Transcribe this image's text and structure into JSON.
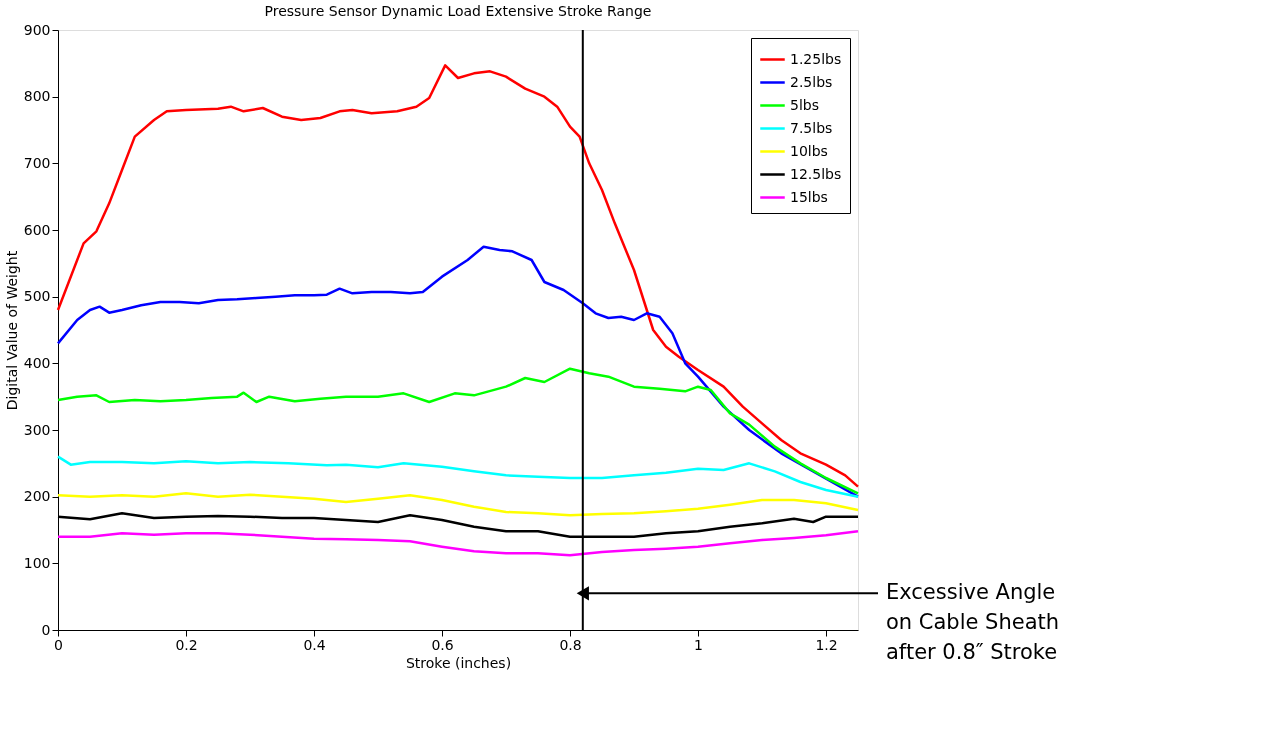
{
  "chart_data": {
    "type": "line",
    "title": "Pressure Sensor Dynamic Load Extensive Stroke Range",
    "xlabel": "Stroke (inches)",
    "ylabel": "Digital Value of Weight",
    "xlim": [
      0,
      1.25
    ],
    "xticks": [
      0,
      0.2,
      0.4,
      0.6,
      0.8,
      1,
      1.2
    ],
    "ylim": [
      0,
      900
    ],
    "yticks": [
      0,
      100,
      200,
      300,
      400,
      500,
      600,
      700,
      800,
      900
    ],
    "grid": false,
    "legend": "top right",
    "marker": "none",
    "line_style": "solid",
    "ref_lines": [
      {
        "axis": "x",
        "value": 0.82,
        "color": "#000000"
      }
    ],
    "annotations": [
      {
        "text": "Excessive Angle on Cable Sheath after 0.8″ Stroke",
        "x": 0.82,
        "y": 55
      }
    ],
    "series": [
      {
        "name": "1.25lbs",
        "color": "#ff0000",
        "x": [
          0,
          0.04,
          0.06,
          0.08,
          0.1,
          0.12,
          0.15,
          0.17,
          0.2,
          0.25,
          0.27,
          0.29,
          0.32,
          0.35,
          0.38,
          0.41,
          0.44,
          0.46,
          0.49,
          0.53,
          0.56,
          0.58,
          0.605,
          0.625,
          0.65,
          0.675,
          0.7,
          0.73,
          0.76,
          0.78,
          0.8,
          0.815,
          0.83,
          0.85,
          0.87,
          0.9,
          0.93,
          0.95,
          0.97,
          1.0,
          1.04,
          1.07,
          1.1,
          1.13,
          1.16,
          1.2,
          1.23,
          1.25
        ],
        "values": [
          480,
          580,
          598,
          640,
          690,
          740,
          765,
          778,
          780,
          782,
          785,
          778,
          783,
          770,
          765,
          768,
          778,
          780,
          775,
          778,
          785,
          798,
          847,
          828,
          835,
          838,
          830,
          812,
          800,
          785,
          755,
          740,
          700,
          660,
          610,
          540,
          450,
          425,
          410,
          390,
          365,
          335,
          310,
          285,
          265,
          248,
          232,
          215
        ]
      },
      {
        "name": "2.5lbs",
        "color": "#0000ff",
        "x": [
          0,
          0.03,
          0.05,
          0.065,
          0.08,
          0.1,
          0.13,
          0.16,
          0.19,
          0.22,
          0.25,
          0.28,
          0.31,
          0.34,
          0.37,
          0.4,
          0.42,
          0.44,
          0.46,
          0.49,
          0.52,
          0.55,
          0.57,
          0.6,
          0.64,
          0.665,
          0.69,
          0.71,
          0.74,
          0.76,
          0.79,
          0.82,
          0.84,
          0.86,
          0.88,
          0.9,
          0.92,
          0.94,
          0.96,
          0.98,
          1.0,
          1.04,
          1.08,
          1.13,
          1.18,
          1.25
        ],
        "values": [
          430,
          465,
          480,
          485,
          476,
          480,
          487,
          492,
          492,
          490,
          495,
          496,
          498,
          500,
          502,
          502,
          503,
          512,
          505,
          507,
          507,
          505,
          507,
          530,
          555,
          575,
          570,
          568,
          555,
          522,
          510,
          490,
          475,
          468,
          470,
          465,
          475,
          470,
          445,
          400,
          380,
          335,
          300,
          265,
          238,
          200
        ]
      },
      {
        "name": "5lbs",
        "color": "#00ff00",
        "x": [
          0,
          0.03,
          0.06,
          0.08,
          0.12,
          0.16,
          0.2,
          0.24,
          0.28,
          0.29,
          0.31,
          0.33,
          0.37,
          0.41,
          0.45,
          0.5,
          0.54,
          0.58,
          0.62,
          0.65,
          0.7,
          0.73,
          0.76,
          0.8,
          0.83,
          0.86,
          0.9,
          0.94,
          0.98,
          1.0,
          1.02,
          1.05,
          1.08,
          1.12,
          1.16,
          1.2,
          1.25
        ],
        "values": [
          345,
          350,
          352,
          342,
          345,
          343,
          345,
          348,
          350,
          356,
          342,
          350,
          343,
          347,
          350,
          350,
          355,
          342,
          355,
          352,
          365,
          378,
          372,
          392,
          385,
          380,
          365,
          362,
          358,
          365,
          360,
          325,
          308,
          275,
          250,
          228,
          205
        ]
      },
      {
        "name": "7.5lbs",
        "color": "#00ffff",
        "x": [
          0,
          0.02,
          0.05,
          0.1,
          0.15,
          0.2,
          0.25,
          0.3,
          0.36,
          0.42,
          0.45,
          0.5,
          0.54,
          0.6,
          0.65,
          0.7,
          0.75,
          0.8,
          0.85,
          0.9,
          0.95,
          1.0,
          1.04,
          1.08,
          1.12,
          1.16,
          1.2,
          1.25
        ],
        "values": [
          260,
          248,
          252,
          252,
          250,
          253,
          250,
          252,
          250,
          247,
          248,
          244,
          250,
          245,
          238,
          232,
          230,
          228,
          228,
          232,
          236,
          242,
          240,
          250,
          238,
          222,
          210,
          200
        ]
      },
      {
        "name": "10lbs",
        "color": "#ffff00",
        "x": [
          0,
          0.05,
          0.1,
          0.15,
          0.2,
          0.25,
          0.3,
          0.35,
          0.4,
          0.45,
          0.5,
          0.55,
          0.6,
          0.65,
          0.7,
          0.75,
          0.8,
          0.85,
          0.9,
          0.95,
          1.0,
          1.05,
          1.1,
          1.15,
          1.2,
          1.25
        ],
        "values": [
          202,
          200,
          202,
          200,
          205,
          200,
          203,
          200,
          197,
          192,
          197,
          202,
          195,
          185,
          177,
          175,
          172,
          174,
          175,
          178,
          182,
          188,
          195,
          195,
          190,
          180
        ]
      },
      {
        "name": "12.5lbs",
        "color": "#000000",
        "x": [
          0,
          0.05,
          0.1,
          0.15,
          0.2,
          0.25,
          0.3,
          0.35,
          0.4,
          0.45,
          0.5,
          0.55,
          0.6,
          0.65,
          0.7,
          0.75,
          0.8,
          0.85,
          0.9,
          0.95,
          1.0,
          1.05,
          1.1,
          1.15,
          1.18,
          1.2,
          1.25
        ],
        "values": [
          170,
          166,
          175,
          168,
          170,
          171,
          170,
          168,
          168,
          165,
          162,
          172,
          165,
          155,
          148,
          148,
          140,
          140,
          140,
          145,
          148,
          155,
          160,
          167,
          162,
          170,
          170
        ]
      },
      {
        "name": "15lbs",
        "color": "#ff00ff",
        "x": [
          0,
          0.05,
          0.1,
          0.15,
          0.2,
          0.25,
          0.3,
          0.35,
          0.4,
          0.45,
          0.5,
          0.55,
          0.6,
          0.65,
          0.7,
          0.75,
          0.8,
          0.85,
          0.9,
          0.95,
          1.0,
          1.05,
          1.1,
          1.15,
          1.2,
          1.25
        ],
        "values": [
          140,
          140,
          145,
          143,
          145,
          145,
          143,
          140,
          137,
          136,
          135,
          133,
          125,
          118,
          115,
          115,
          112,
          117,
          120,
          122,
          125,
          130,
          135,
          138,
          142,
          148
        ]
      }
    ]
  }
}
